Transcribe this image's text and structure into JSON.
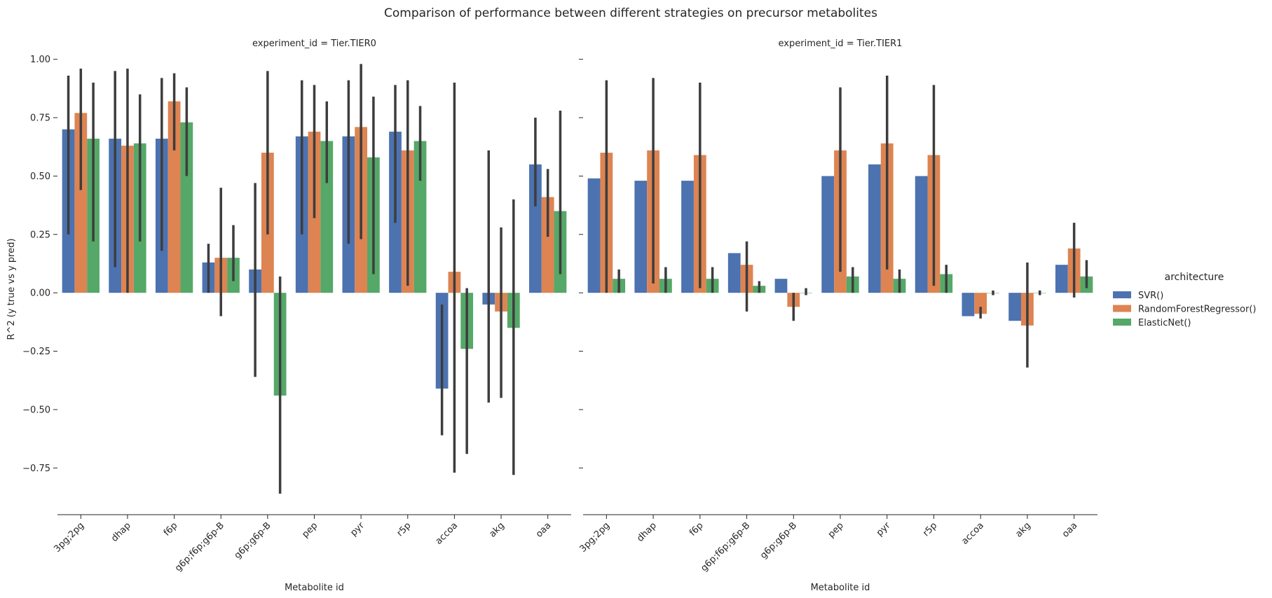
{
  "chart_data": {
    "type": "bar",
    "title": "Comparison of performance between different strategies on precursor metabolites",
    "xlabel": "Metabolite id",
    "ylabel": "R^2 (y true vs y pred)",
    "ylim": [
      -0.95,
      1.02
    ],
    "yticks": [
      -0.75,
      -0.5,
      -0.25,
      0.0,
      0.25,
      0.5,
      0.75,
      1.0
    ],
    "ytick_labels": [
      "−0.75",
      "−0.50",
      "−0.25",
      "0.00",
      "0.25",
      "0.50",
      "0.75",
      "1.00"
    ],
    "categories": [
      "3pg;2pg",
      "dhap",
      "f6p",
      "g6p;f6p;g6p-B",
      "g6p;g6p-B",
      "pep",
      "pyr",
      "r5p",
      "accoa",
      "akg",
      "oaa"
    ],
    "legend": {
      "title": "architecture",
      "placement": "right"
    },
    "series_styles": [
      {
        "name": "SVR()",
        "color": "#4c72b0"
      },
      {
        "name": "RandomForestRegressor()",
        "color": "#dd8452"
      },
      {
        "name": "ElasticNet()",
        "color": "#55a868"
      }
    ],
    "facets": [
      {
        "title": "experiment_id = Tier.TIER0",
        "series": [
          {
            "name": "SVR()",
            "values": [
              0.7,
              0.66,
              0.66,
              0.13,
              0.1,
              0.67,
              0.67,
              0.69,
              -0.41,
              -0.05,
              0.55
            ],
            "ci_low": [
              0.25,
              0.11,
              0.18,
              0.0,
              -0.36,
              0.25,
              0.21,
              0.3,
              -0.61,
              -0.47,
              0.37
            ],
            "ci_high": [
              0.93,
              0.95,
              0.92,
              0.21,
              0.47,
              0.91,
              0.91,
              0.89,
              -0.05,
              0.61,
              0.75
            ]
          },
          {
            "name": "RandomForestRegressor()",
            "values": [
              0.77,
              0.63,
              0.82,
              0.15,
              0.6,
              0.69,
              0.71,
              0.61,
              0.09,
              -0.08,
              0.41
            ],
            "ci_low": [
              0.44,
              0.0,
              0.61,
              -0.1,
              0.25,
              0.32,
              0.23,
              0.03,
              -0.77,
              -0.45,
              0.24
            ],
            "ci_high": [
              0.96,
              0.96,
              0.94,
              0.45,
              0.95,
              0.89,
              0.98,
              0.91,
              0.9,
              0.28,
              0.53
            ]
          },
          {
            "name": "ElasticNet()",
            "values": [
              0.66,
              0.64,
              0.73,
              0.15,
              -0.44,
              0.65,
              0.58,
              0.65,
              -0.24,
              -0.15,
              0.35
            ],
            "ci_low": [
              0.22,
              0.22,
              0.5,
              0.05,
              -0.86,
              0.47,
              0.08,
              0.48,
              -0.69,
              -0.78,
              0.08
            ],
            "ci_high": [
              0.9,
              0.85,
              0.88,
              0.29,
              0.07,
              0.82,
              0.84,
              0.8,
              0.02,
              0.4,
              0.78
            ]
          }
        ]
      },
      {
        "title": "experiment_id = Tier.TIER1",
        "series": [
          {
            "name": "SVR()",
            "values": [
              0.49,
              0.48,
              0.48,
              0.17,
              0.06,
              0.5,
              0.55,
              0.5,
              -0.1,
              -0.12,
              0.12
            ],
            "ci_low": null,
            "ci_high": null
          },
          {
            "name": "RandomForestRegressor()",
            "values": [
              0.6,
              0.61,
              0.59,
              0.12,
              -0.06,
              0.61,
              0.64,
              0.59,
              -0.09,
              -0.14,
              0.19
            ],
            "ci_low": [
              0.0,
              0.04,
              0.02,
              -0.08,
              -0.12,
              0.09,
              0.1,
              0.03,
              -0.11,
              -0.32,
              -0.02
            ],
            "ci_high": [
              0.91,
              0.92,
              0.9,
              0.22,
              0.0,
              0.88,
              0.93,
              0.89,
              -0.06,
              0.13,
              0.3
            ]
          },
          {
            "name": "ElasticNet()",
            "values": [
              0.06,
              0.06,
              0.06,
              0.03,
              0.0,
              0.07,
              0.06,
              0.08,
              0.0,
              0.0,
              0.07
            ],
            "ci_low": [
              0.0,
              0.0,
              0.0,
              0.0,
              -0.01,
              0.0,
              0.0,
              0.0,
              -0.01,
              -0.01,
              0.02
            ],
            "ci_high": [
              0.1,
              0.11,
              0.11,
              0.05,
              0.02,
              0.11,
              0.1,
              0.12,
              0.01,
              0.01,
              0.14
            ]
          }
        ]
      }
    ]
  }
}
